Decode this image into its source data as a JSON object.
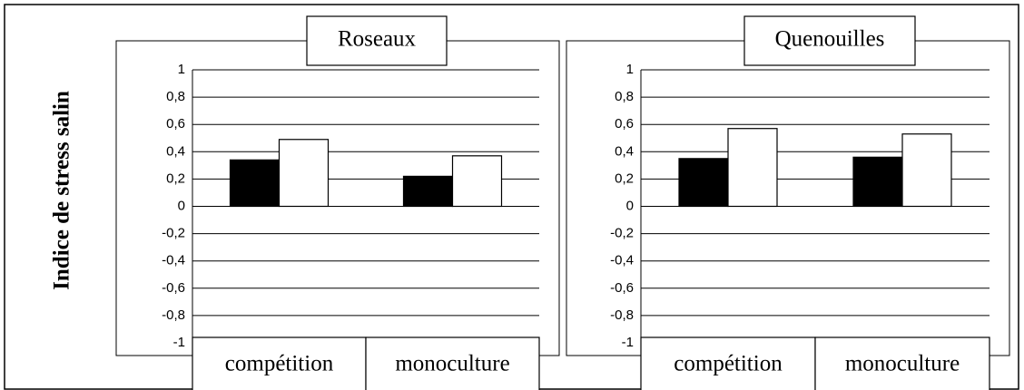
{
  "chart_data": [
    {
      "type": "bar",
      "title": "Roseaux",
      "ylabel": "Indice de stress salin",
      "categories": [
        "compétition",
        "monoculture"
      ],
      "series": [
        {
          "color": "#000000",
          "values": [
            0.34,
            0.22
          ]
        },
        {
          "color": "#ffffff",
          "values": [
            0.49,
            0.37
          ]
        }
      ],
      "ylim": [
        -1,
        1
      ],
      "yticks": [
        -1,
        {
          "value": -0.8,
          "label": "-0,8"
        },
        {
          "value": -0.6,
          "label": "-0,6"
        },
        {
          "value": -0.4,
          "label": "-0,4"
        },
        {
          "value": -0.2,
          "label": "-0,2"
        },
        0,
        {
          "value": 0.2,
          "label": "0,2"
        },
        {
          "value": 0.4,
          "label": "0,4"
        },
        {
          "value": 0.6,
          "label": "0,6"
        },
        {
          "value": 0.8,
          "label": "0,8"
        },
        1
      ],
      "grid": true
    },
    {
      "type": "bar",
      "title": "Quenouilles",
      "categories": [
        "compétition",
        "monoculture"
      ],
      "series": [
        {
          "color": "#000000",
          "values": [
            0.35,
            0.36
          ]
        },
        {
          "color": "#ffffff",
          "values": [
            0.57,
            0.53
          ]
        }
      ],
      "ylim": [
        -1,
        1
      ],
      "yticks": [
        -1,
        {
          "value": -0.8,
          "label": "-0,8"
        },
        {
          "value": -0.6,
          "label": "-0,6"
        },
        {
          "value": -0.4,
          "label": "-0,4"
        },
        {
          "value": -0.2,
          "label": "-0,2"
        },
        0,
        {
          "value": 0.2,
          "label": "0,2"
        },
        {
          "value": 0.4,
          "label": "0,4"
        },
        {
          "value": 0.6,
          "label": "0,6"
        },
        {
          "value": 0.8,
          "label": "0,8"
        },
        1
      ],
      "grid": true
    }
  ]
}
